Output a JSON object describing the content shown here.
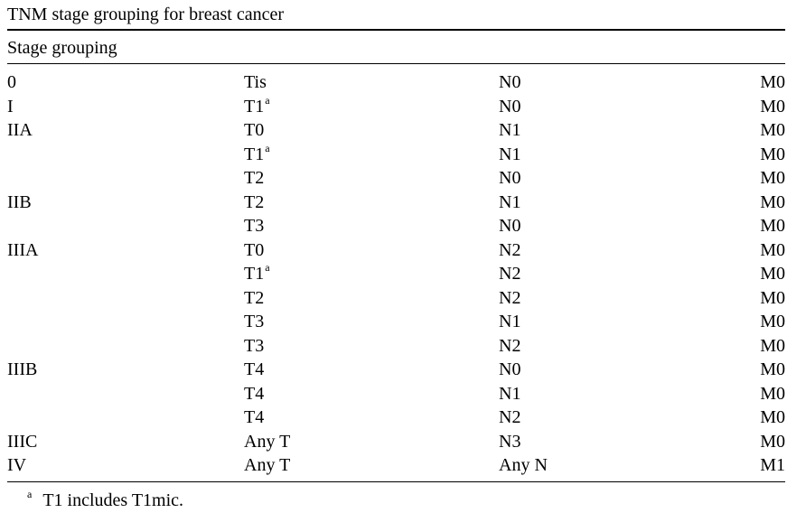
{
  "caption": "TNM stage grouping for breast cancer",
  "group_header": "Stage grouping",
  "rows": [
    {
      "stage": "0",
      "t": "Tis",
      "t_sup": "",
      "n": "N0",
      "m": "M0"
    },
    {
      "stage": "I",
      "t": "T1",
      "t_sup": "a",
      "n": "N0",
      "m": "M0"
    },
    {
      "stage": "IIA",
      "t": "T0",
      "t_sup": "",
      "n": "N1",
      "m": "M0"
    },
    {
      "stage": "",
      "t": "T1",
      "t_sup": "a",
      "n": "N1",
      "m": "M0"
    },
    {
      "stage": "",
      "t": "T2",
      "t_sup": "",
      "n": "N0",
      "m": "M0"
    },
    {
      "stage": "IIB",
      "t": "T2",
      "t_sup": "",
      "n": "N1",
      "m": "M0"
    },
    {
      "stage": "",
      "t": "T3",
      "t_sup": "",
      "n": "N0",
      "m": "M0"
    },
    {
      "stage": "IIIA",
      "t": "T0",
      "t_sup": "",
      "n": "N2",
      "m": "M0"
    },
    {
      "stage": "",
      "t": "T1",
      "t_sup": "a",
      "n": "N2",
      "m": "M0"
    },
    {
      "stage": "",
      "t": "T2",
      "t_sup": "",
      "n": "N2",
      "m": "M0"
    },
    {
      "stage": "",
      "t": "T3",
      "t_sup": "",
      "n": "N1",
      "m": "M0"
    },
    {
      "stage": "",
      "t": "T3",
      "t_sup": "",
      "n": "N2",
      "m": "M0"
    },
    {
      "stage": "IIIB",
      "t": "T4",
      "t_sup": "",
      "n": "N0",
      "m": "M0"
    },
    {
      "stage": "",
      "t": "T4",
      "t_sup": "",
      "n": "N1",
      "m": "M0"
    },
    {
      "stage": "",
      "t": "T4",
      "t_sup": "",
      "n": "N2",
      "m": "M0"
    },
    {
      "stage": "IIIC",
      "t": "Any T",
      "t_sup": "",
      "n": "N3",
      "m": "M0"
    },
    {
      "stage": "IV",
      "t": "Any T",
      "t_sup": "",
      "n": "Any N",
      "m": "M1"
    }
  ],
  "footnote": {
    "marker": "a",
    "text": "T1 includes T1mic."
  }
}
